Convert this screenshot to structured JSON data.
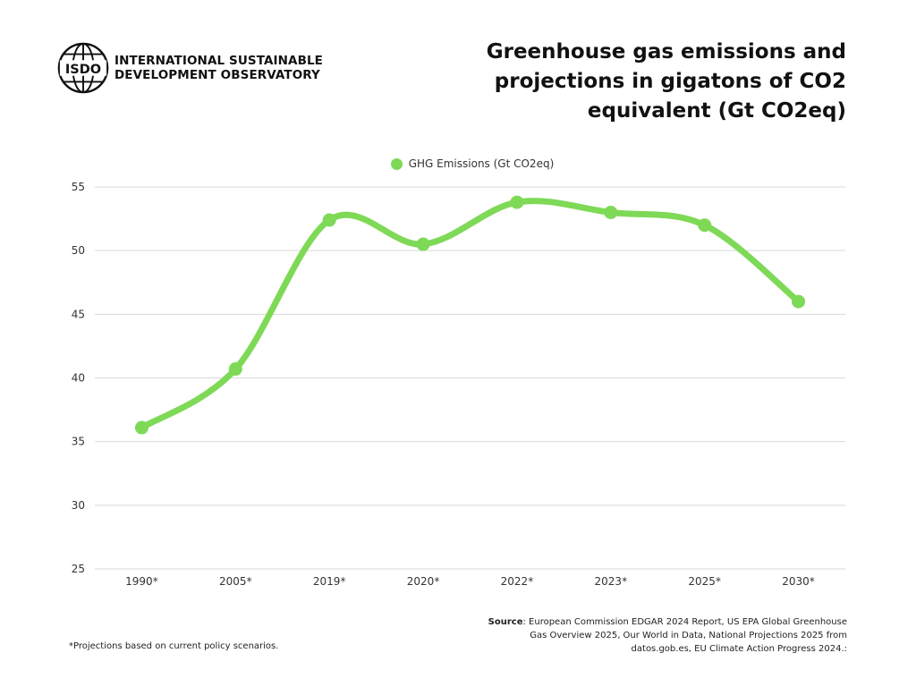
{
  "header": {
    "org_line1": "INTERNATIONAL SUSTAINABLE",
    "org_line2": "DEVELOPMENT OBSERVATORY",
    "logo_text": "ISDO",
    "title": "Greenhouse gas emissions and projections in gigatons of CO2 equivalent (Gt CO2eq)"
  },
  "chart_data": {
    "type": "line",
    "title": "Greenhouse gas emissions and projections in gigatons of CO2 equivalent (Gt CO2eq)",
    "categories": [
      "1990*",
      "2005*",
      "2019*",
      "2020*",
      "2022*",
      "2023*",
      "2025*",
      "2030*"
    ],
    "series": [
      {
        "name": "GHG Emissions (Gt CO2eq)",
        "values": [
          36.1,
          40.7,
          52.4,
          50.5,
          53.8,
          53.0,
          52.0,
          46.0
        ],
        "color": "#7ed957"
      }
    ],
    "xlabel": "",
    "ylabel": "",
    "ylim": [
      25,
      55
    ],
    "yticks": [
      25,
      30,
      35,
      40,
      45,
      50,
      55
    ],
    "grid": true,
    "legend_position": "top-center",
    "smooth": true
  },
  "footer": {
    "footnote": "*Projections based on current policy scenarios.",
    "source_label": "Source",
    "source_text": ": European Commission EDGAR 2024 Report, US EPA Global Greenhouse Gas Overview 2025, Our World in Data, National Projections 2025 from datos.gob.es, EU Climate Action Progress 2024.:"
  }
}
